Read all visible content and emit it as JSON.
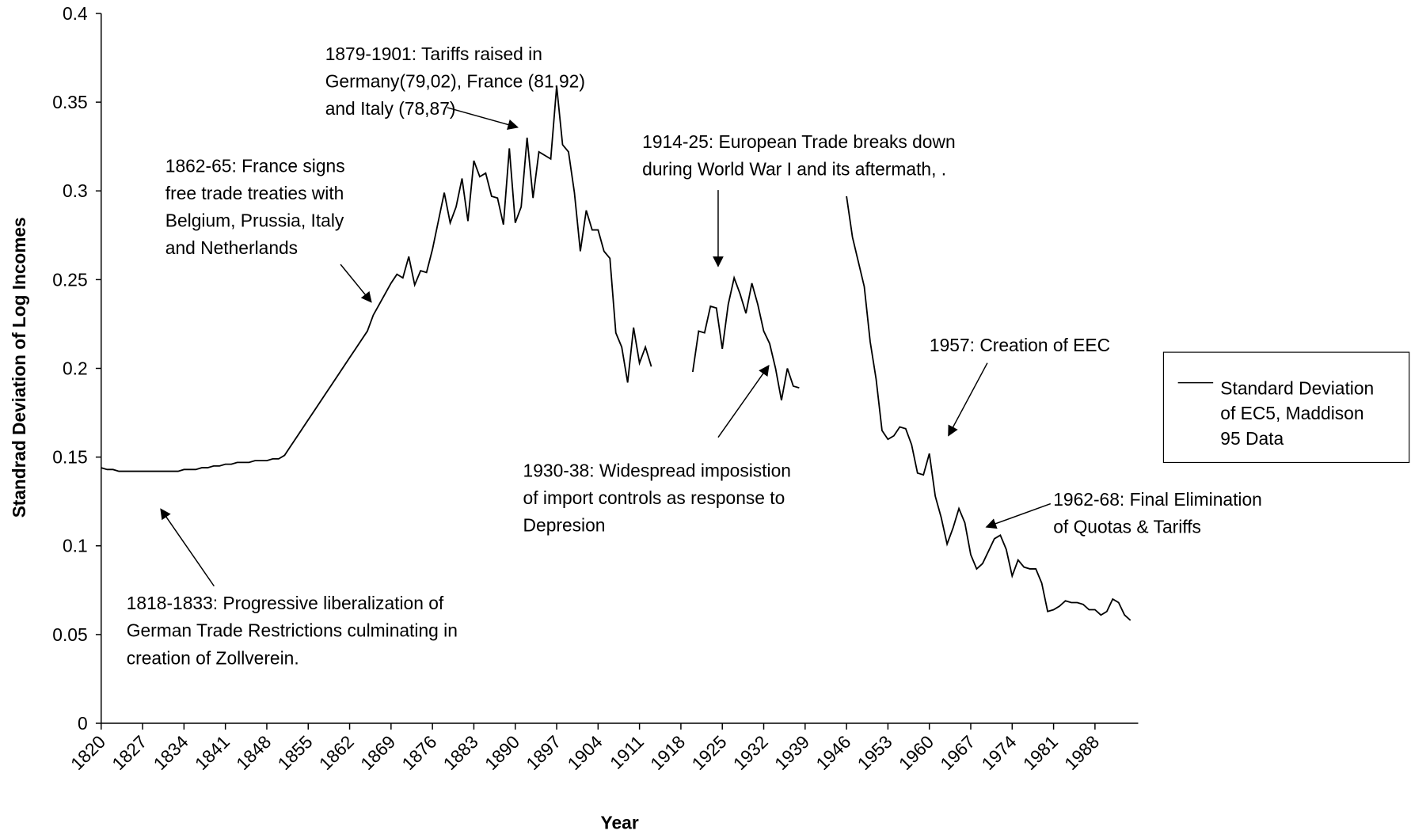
{
  "chart_data": {
    "type": "line",
    "x_label": "Year",
    "y_label": "Standrad Deviation of Log Incomes",
    "xlim": [
      1820,
      1995
    ],
    "ylim": [
      0,
      0.4
    ],
    "xticks": [
      1820,
      1827,
      1834,
      1841,
      1848,
      1855,
      1862,
      1869,
      1876,
      1883,
      1890,
      1897,
      1904,
      1911,
      1918,
      1925,
      1932,
      1939,
      1946,
      1953,
      1960,
      1967,
      1974,
      1981,
      1988
    ],
    "yticks": [
      0,
      0.05,
      0.1,
      0.15,
      0.2,
      0.25,
      0.3,
      0.35,
      0.4
    ],
    "x": [
      1820,
      1821,
      1822,
      1823,
      1824,
      1825,
      1826,
      1827,
      1828,
      1829,
      1830,
      1831,
      1832,
      1833,
      1834,
      1835,
      1836,
      1837,
      1838,
      1839,
      1840,
      1841,
      1842,
      1843,
      1844,
      1845,
      1846,
      1847,
      1848,
      1849,
      1850,
      1851,
      1852,
      1853,
      1854,
      1855,
      1856,
      1857,
      1858,
      1859,
      1860,
      1861,
      1862,
      1863,
      1864,
      1865,
      1866,
      1867,
      1868,
      1869,
      1870,
      1871,
      1872,
      1873,
      1874,
      1875,
      1876,
      1877,
      1878,
      1879,
      1880,
      1881,
      1882,
      1883,
      1884,
      1885,
      1886,
      1887,
      1888,
      1889,
      1890,
      1891,
      1892,
      1893,
      1894,
      1895,
      1896,
      1897,
      1898,
      1899,
      1900,
      1901,
      1902,
      1903,
      1904,
      1905,
      1906,
      1907,
      1908,
      1909,
      1910,
      1911,
      1912,
      1913,
      1914,
      1915,
      1916,
      1917,
      1918,
      1919,
      1920,
      1921,
      1922,
      1923,
      1924,
      1925,
      1926,
      1927,
      1928,
      1929,
      1930,
      1931,
      1932,
      1933,
      1934,
      1935,
      1936,
      1937,
      1938,
      1939,
      1940,
      1941,
      1942,
      1943,
      1944,
      1945,
      1946,
      1947,
      1948,
      1949,
      1950,
      1951,
      1952,
      1953,
      1954,
      1955,
      1956,
      1957,
      1958,
      1959,
      1960,
      1961,
      1962,
      1963,
      1964,
      1965,
      1966,
      1967,
      1968,
      1969,
      1970,
      1971,
      1972,
      1973,
      1974,
      1975,
      1976,
      1977,
      1978,
      1979,
      1980,
      1981,
      1982,
      1983,
      1984,
      1985,
      1986,
      1987,
      1988,
      1989,
      1990,
      1991,
      1992,
      1993,
      1994
    ],
    "series": [
      {
        "name": "Standard Deviation of EC5, Maddison 95 Data",
        "color": "#000000",
        "values": [
          0.144,
          0.143,
          0.143,
          0.142,
          0.142,
          0.142,
          0.142,
          0.142,
          0.142,
          0.142,
          0.142,
          0.142,
          0.142,
          0.142,
          0.143,
          0.143,
          0.143,
          0.144,
          0.144,
          0.145,
          0.145,
          0.146,
          0.146,
          0.147,
          0.147,
          0.147,
          0.148,
          0.148,
          0.148,
          0.149,
          0.149,
          0.151,
          0.156,
          0.161,
          0.166,
          0.171,
          0.176,
          0.181,
          0.186,
          0.191,
          0.196,
          0.201,
          0.206,
          0.211,
          0.216,
          0.221,
          0.23,
          0.236,
          0.242,
          0.248,
          0.253,
          0.251,
          0.263,
          0.247,
          0.255,
          0.254,
          0.267,
          0.283,
          0.299,
          0.282,
          0.291,
          0.307,
          0.283,
          0.317,
          0.308,
          0.31,
          0.297,
          0.296,
          0.281,
          0.324,
          0.282,
          0.291,
          0.33,
          0.296,
          0.322,
          0.32,
          0.318,
          0.359,
          0.326,
          0.322,
          0.299,
          0.266,
          0.289,
          0.278,
          0.278,
          0.266,
          0.262,
          0.22,
          0.212,
          0.192,
          0.223,
          0.203,
          0.212,
          0.201,
          null,
          null,
          null,
          null,
          null,
          null,
          0.198,
          0.221,
          0.22,
          0.235,
          0.234,
          0.211,
          0.236,
          0.251,
          0.242,
          0.231,
          0.248,
          0.236,
          0.221,
          0.214,
          0.2,
          0.182,
          0.2,
          0.19,
          0.189,
          null,
          null,
          null,
          null,
          null,
          null,
          null,
          0.297,
          0.274,
          0.26,
          0.246,
          0.215,
          0.194,
          0.165,
          0.16,
          0.162,
          0.167,
          0.166,
          0.157,
          0.141,
          0.14,
          0.152,
          0.128,
          0.116,
          0.101,
          0.11,
          0.121,
          0.113,
          0.095,
          0.087,
          0.09,
          0.097,
          0.104,
          0.106,
          0.098,
          0.083,
          0.092,
          0.088,
          0.087,
          0.087,
          0.079,
          0.063,
          0.064,
          0.066,
          0.069,
          0.068,
          0.068,
          0.067,
          0.064,
          0.064,
          0.061,
          0.063,
          0.07,
          0.068,
          0.061,
          0.058
        ]
      }
    ],
    "legend": "right",
    "annotations": [
      {
        "lines": [
          "1879-1901: Tariffs raised in",
          "Germany(79,02), France (81,92)",
          "and Italy (78,87)"
        ]
      },
      {
        "lines": [
          "1862-65: France signs",
          "free trade treaties with",
          "Belgium, Prussia, Italy",
          "and Netherlands"
        ]
      },
      {
        "lines": [
          "1914-25: European Trade breaks down",
          "during World War I and its aftermath, ."
        ]
      },
      {
        "lines": [
          "1930-38: Widespread imposistion",
          "of import controls as response to",
          "Depresion"
        ]
      },
      {
        "lines": [
          "1957: Creation of EEC"
        ]
      },
      {
        "lines": [
          "1962-68: Final Elimination",
          "of Quotas & Tariffs"
        ]
      },
      {
        "lines": [
          "1818-1833: Progressive liberalization of",
          "German Trade Restrictions culminating in",
          "creation of Zollverein."
        ]
      }
    ]
  }
}
